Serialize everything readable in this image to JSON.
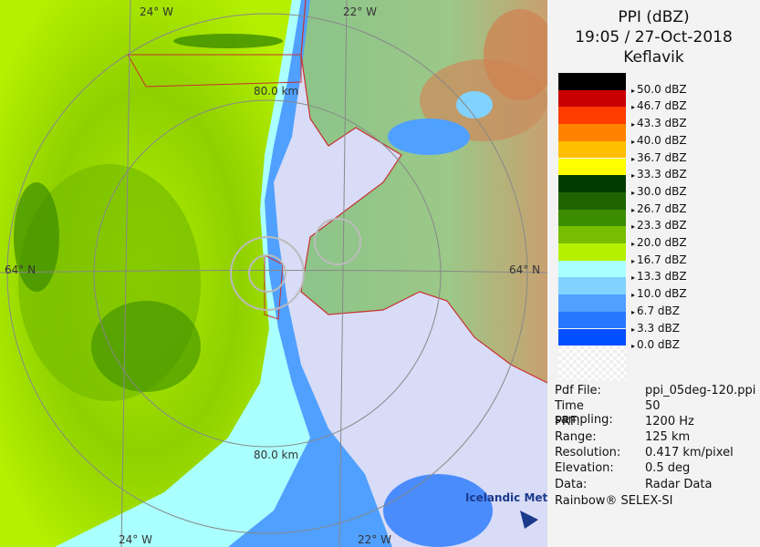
{
  "header": {
    "title": "PPI (dBZ)",
    "time": "19:05 / 27-Oct-2018",
    "site": "Keflavik"
  },
  "legend": {
    "items": [
      {
        "label": "50.0 dBZ",
        "color": "#000000"
      },
      {
        "label": "46.7 dBZ",
        "color": "#c80000"
      },
      {
        "label": "43.3 dBZ",
        "color": "#ff3c00"
      },
      {
        "label": "40.0 dBZ",
        "color": "#ff8200"
      },
      {
        "label": "36.7 dBZ",
        "color": "#ffbe00"
      },
      {
        "label": "33.3 dBZ",
        "color": "#ffff00"
      },
      {
        "label": "30.0 dBZ",
        "color": "#003c00"
      },
      {
        "label": "26.7 dBZ",
        "color": "#1e6400"
      },
      {
        "label": "23.3 dBZ",
        "color": "#3c8c00"
      },
      {
        "label": "20.0 dBZ",
        "color": "#78be00"
      },
      {
        "label": "16.7 dBZ",
        "color": "#b4f000"
      },
      {
        "label": "13.3 dBZ",
        "color": "#aaffff"
      },
      {
        "label": "10.0 dBZ",
        "color": "#82d2ff"
      },
      {
        "label": "6.7 dBZ",
        "color": "#50a0ff"
      },
      {
        "label": "3.3 dBZ",
        "color": "#2878ff"
      },
      {
        "label": "0.0 dBZ",
        "color": "#0050ff"
      }
    ]
  },
  "info": [
    {
      "label": "Pdf File:",
      "value": "ppi_05deg-120.ppi"
    },
    {
      "label": "Time sampling:",
      "value": "50"
    },
    {
      "label": "PRF:",
      "value": "1200 Hz"
    },
    {
      "label": "Range:",
      "value": "125 km"
    },
    {
      "label": "Resolution:",
      "value": "0.417 km/pixel"
    },
    {
      "label": "Elevation:",
      "value": "0.5 deg"
    },
    {
      "label": "Data:",
      "value": "Radar Data"
    }
  ],
  "footer": "Rainbow® SELEX-SI",
  "map": {
    "lon_labels": [
      "24° W",
      "22° W"
    ],
    "lat_label": "64° N",
    "range_label": "80.0 km",
    "logo": "Icelandic Met Office"
  }
}
